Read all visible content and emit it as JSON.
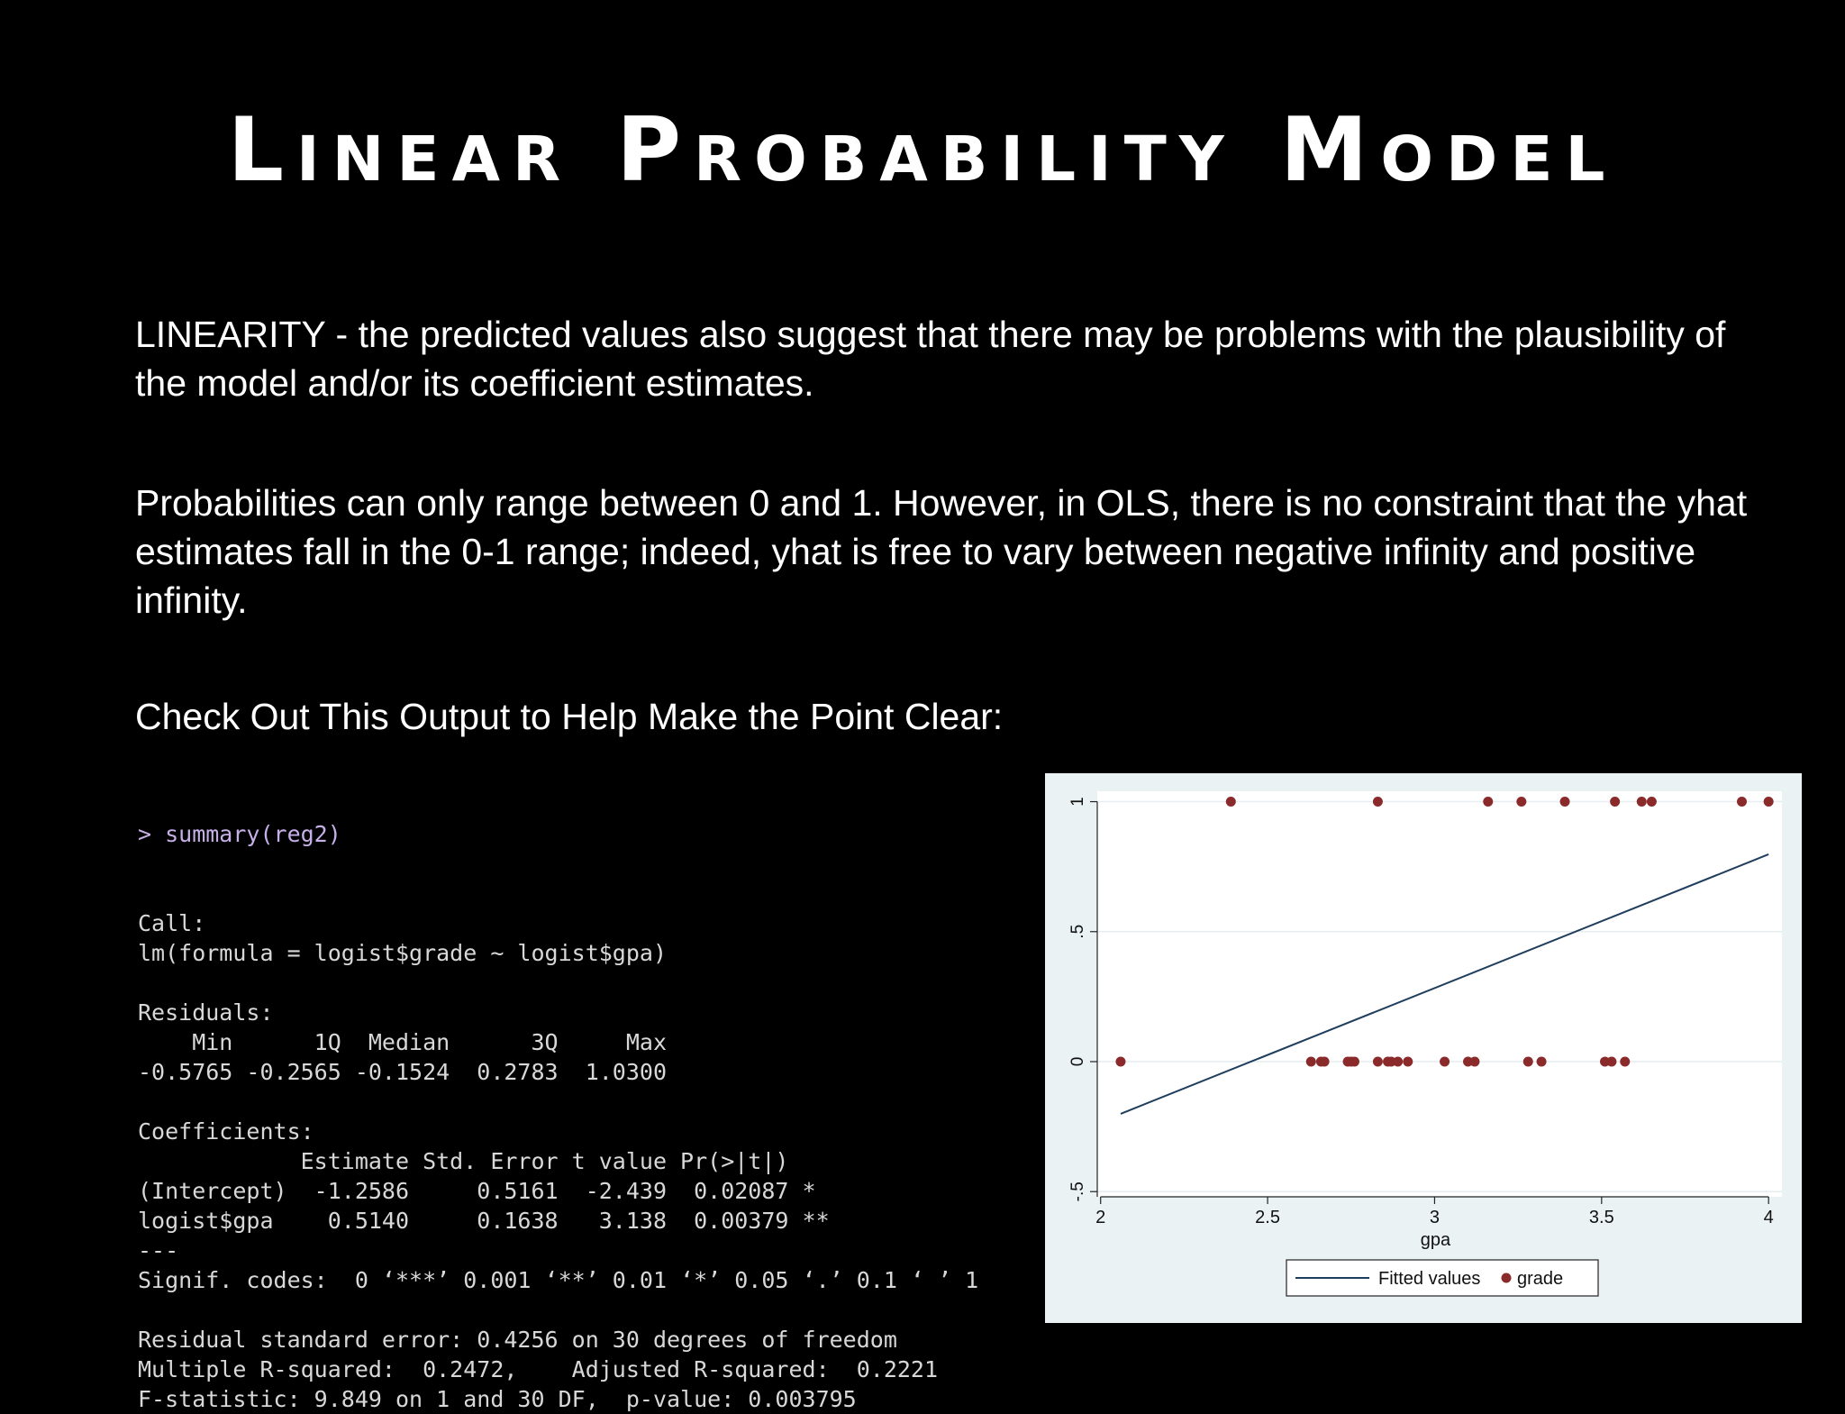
{
  "slide": {
    "title": "Linear Probability Model",
    "paragraph1": "LINEARITY  - the predicted values also suggest that there may be problems with the plausibility of the model and/or its coefficient estimates.",
    "paragraph2": "Probabilities can only range between 0 and 1. However, in OLS, there is no constraint that the yhat estimates fall in the 0-1 range; indeed, yhat is free to vary between negative infinity and positive infinity.",
    "paragraph3": "Check Out This Output to Help Make the Point Clear:"
  },
  "console": {
    "command": "> summary(reg2)",
    "lines": [
      "",
      "Call:",
      "lm(formula = logist$grade ~ logist$gpa)",
      "",
      "Residuals:",
      "    Min      1Q  Median      3Q     Max ",
      "-0.5765 -0.2565 -0.1524  0.2783  1.0300 ",
      "",
      "Coefficients:",
      "            Estimate Std. Error t value Pr(>|t|)   ",
      "(Intercept)  -1.2586     0.5161  -2.439  0.02087 * ",
      "logist$gpa    0.5140     0.1638   3.138  0.00379 **",
      "---",
      "Signif. codes:  0 ‘***’ 0.001 ‘**’ 0.01 ‘*’ 0.05 ‘.’ 0.1 ‘ ’ 1",
      "",
      "Residual standard error: 0.4256 on 30 degrees of freedom",
      "Multiple R-squared:  0.2472,\tAdjusted R-squared:  0.2221 ",
      "F-statistic: 9.849 on 1 and 30 DF,  p-value: 0.003795"
    ]
  },
  "chart_data": {
    "type": "scatter",
    "xlabel": "gpa",
    "ylabel": "",
    "xlim": [
      1.99,
      4.04
    ],
    "ylim": [
      -0.52,
      1.04
    ],
    "x_ticks": [
      2,
      2.5,
      3,
      3.5,
      4
    ],
    "x_tick_labels": [
      "2",
      "2.5",
      "3",
      "3.5",
      "4"
    ],
    "y_ticks": [
      -0.5,
      0,
      0.5,
      1
    ],
    "y_tick_labels": [
      "-.5",
      "0",
      ".5",
      "1"
    ],
    "grid": true,
    "legend_position": "bottom",
    "series": [
      {
        "name": "Fitted values",
        "kind": "line",
        "color": "#1f3d5c",
        "points": [
          [
            2.06,
            -0.2007
          ],
          [
            4.0,
            0.7974
          ]
        ]
      },
      {
        "name": "grade",
        "kind": "scatter",
        "color": "#8b2a2a",
        "points": [
          [
            2.06,
            0
          ],
          [
            2.39,
            1
          ],
          [
            2.63,
            0
          ],
          [
            2.66,
            0
          ],
          [
            2.67,
            0
          ],
          [
            2.74,
            0
          ],
          [
            2.75,
            0
          ],
          [
            2.76,
            0
          ],
          [
            2.83,
            1
          ],
          [
            2.83,
            0
          ],
          [
            2.86,
            0
          ],
          [
            2.87,
            0
          ],
          [
            2.89,
            0
          ],
          [
            2.92,
            0
          ],
          [
            3.03,
            0
          ],
          [
            3.1,
            0
          ],
          [
            3.12,
            0
          ],
          [
            3.16,
            1
          ],
          [
            3.26,
            1
          ],
          [
            3.28,
            0
          ],
          [
            3.32,
            0
          ],
          [
            3.39,
            1
          ],
          [
            3.51,
            0
          ],
          [
            3.53,
            0
          ],
          [
            3.54,
            1
          ],
          [
            3.57,
            0
          ],
          [
            3.62,
            1
          ],
          [
            3.65,
            1
          ],
          [
            3.92,
            1
          ],
          [
            4.0,
            1
          ]
        ]
      }
    ]
  }
}
